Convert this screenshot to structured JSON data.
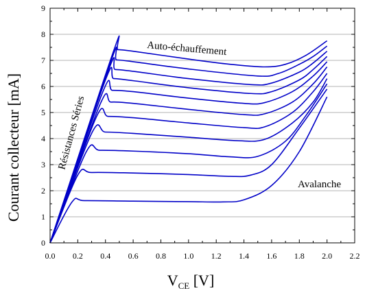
{
  "chart_data": {
    "type": "line",
    "title": "",
    "xlabel": {
      "main": "V",
      "sub": "CE",
      "unit": " [V]"
    },
    "ylabel": "Courant collecteur [mA]",
    "xlim": [
      0.0,
      2.2
    ],
    "ylim": [
      0,
      9
    ],
    "x_ticks": [
      "0.0",
      "0.2",
      "0.4",
      "0.6",
      "0.8",
      "1.0",
      "1.2",
      "1.4",
      "1.6",
      "1.8",
      "2.0",
      "2.2"
    ],
    "y_ticks": [
      "0",
      "1",
      "2",
      "3",
      "4",
      "5",
      "6",
      "7",
      "8",
      "9"
    ],
    "grid": "horizontal",
    "series_color": "#0000c8",
    "annotations": [
      {
        "text": "Auto-échauffement"
      },
      {
        "text": "Résistances Séries"
      },
      {
        "text": "Avalanche"
      }
    ],
    "series": [
      {
        "points": [
          [
            0.0,
            0.0
          ],
          [
            0.16,
            1.58
          ],
          [
            0.25,
            1.62
          ],
          [
            0.6,
            1.6
          ],
          [
            1.0,
            1.58
          ],
          [
            1.25,
            1.57
          ],
          [
            1.4,
            1.65
          ],
          [
            1.6,
            2.2
          ],
          [
            1.8,
            3.5
          ],
          [
            2.0,
            5.6
          ]
        ]
      },
      {
        "points": [
          [
            0.0,
            0.0
          ],
          [
            0.2,
            2.6
          ],
          [
            0.3,
            2.7
          ],
          [
            0.6,
            2.68
          ],
          [
            1.0,
            2.62
          ],
          [
            1.3,
            2.55
          ],
          [
            1.45,
            2.6
          ],
          [
            1.6,
            3.0
          ],
          [
            1.8,
            4.4
          ],
          [
            2.0,
            5.9
          ]
        ]
      },
      {
        "points": [
          [
            0.0,
            0.0
          ],
          [
            0.26,
            3.48
          ],
          [
            0.36,
            3.55
          ],
          [
            0.6,
            3.52
          ],
          [
            1.0,
            3.42
          ],
          [
            1.3,
            3.3
          ],
          [
            1.5,
            3.32
          ],
          [
            1.7,
            3.9
          ],
          [
            1.85,
            4.9
          ],
          [
            2.0,
            6.1
          ]
        ]
      },
      {
        "points": [
          [
            0.0,
            0.0
          ],
          [
            0.3,
            4.2
          ],
          [
            0.4,
            4.25
          ],
          [
            0.6,
            4.2
          ],
          [
            1.0,
            4.05
          ],
          [
            1.35,
            3.92
          ],
          [
            1.55,
            3.97
          ],
          [
            1.75,
            4.6
          ],
          [
            1.9,
            5.4
          ],
          [
            2.0,
            6.3
          ]
        ]
      },
      {
        "points": [
          [
            0.0,
            0.0
          ],
          [
            0.33,
            4.78
          ],
          [
            0.42,
            4.85
          ],
          [
            0.6,
            4.8
          ],
          [
            1.0,
            4.6
          ],
          [
            1.4,
            4.42
          ],
          [
            1.55,
            4.45
          ],
          [
            1.75,
            5.0
          ],
          [
            1.9,
            5.8
          ],
          [
            2.0,
            6.5
          ]
        ]
      },
      {
        "points": [
          [
            0.0,
            0.0
          ],
          [
            0.36,
            5.3
          ],
          [
            0.44,
            5.4
          ],
          [
            0.6,
            5.35
          ],
          [
            1.0,
            5.12
          ],
          [
            1.4,
            4.92
          ],
          [
            1.55,
            4.95
          ],
          [
            1.75,
            5.4
          ],
          [
            1.9,
            6.1
          ],
          [
            2.0,
            6.75
          ]
        ]
      },
      {
        "points": [
          [
            0.0,
            0.0
          ],
          [
            0.38,
            5.78
          ],
          [
            0.45,
            5.85
          ],
          [
            0.6,
            5.8
          ],
          [
            1.0,
            5.55
          ],
          [
            1.4,
            5.35
          ],
          [
            1.55,
            5.38
          ],
          [
            1.75,
            5.8
          ],
          [
            1.9,
            6.4
          ],
          [
            2.0,
            6.95
          ]
        ]
      },
      {
        "points": [
          [
            0.0,
            0.0
          ],
          [
            0.4,
            6.25
          ],
          [
            0.46,
            6.3
          ],
          [
            0.6,
            6.22
          ],
          [
            1.0,
            5.95
          ],
          [
            1.45,
            5.73
          ],
          [
            1.6,
            5.8
          ],
          [
            1.8,
            6.25
          ],
          [
            1.9,
            6.65
          ],
          [
            2.0,
            7.15
          ]
        ]
      },
      {
        "points": [
          [
            0.0,
            0.0
          ],
          [
            0.42,
            6.6
          ],
          [
            0.47,
            6.65
          ],
          [
            0.6,
            6.58
          ],
          [
            1.0,
            6.3
          ],
          [
            1.45,
            6.07
          ],
          [
            1.6,
            6.13
          ],
          [
            1.8,
            6.55
          ],
          [
            1.9,
            6.9
          ],
          [
            2.0,
            7.35
          ]
        ]
      },
      {
        "points": [
          [
            0.0,
            0.0
          ],
          [
            0.44,
            6.98
          ],
          [
            0.48,
            7.02
          ],
          [
            0.6,
            6.95
          ],
          [
            1.0,
            6.67
          ],
          [
            1.5,
            6.4
          ],
          [
            1.65,
            6.5
          ],
          [
            1.8,
            6.85
          ],
          [
            1.9,
            7.15
          ],
          [
            2.0,
            7.55
          ]
        ]
      },
      {
        "points": [
          [
            0.0,
            0.0
          ],
          [
            0.46,
            7.38
          ],
          [
            0.49,
            7.41
          ],
          [
            0.6,
            7.35
          ],
          [
            1.0,
            7.05
          ],
          [
            1.3,
            6.85
          ],
          [
            1.55,
            6.75
          ],
          [
            1.7,
            6.85
          ],
          [
            1.85,
            7.2
          ],
          [
            2.0,
            7.75
          ]
        ]
      }
    ]
  }
}
